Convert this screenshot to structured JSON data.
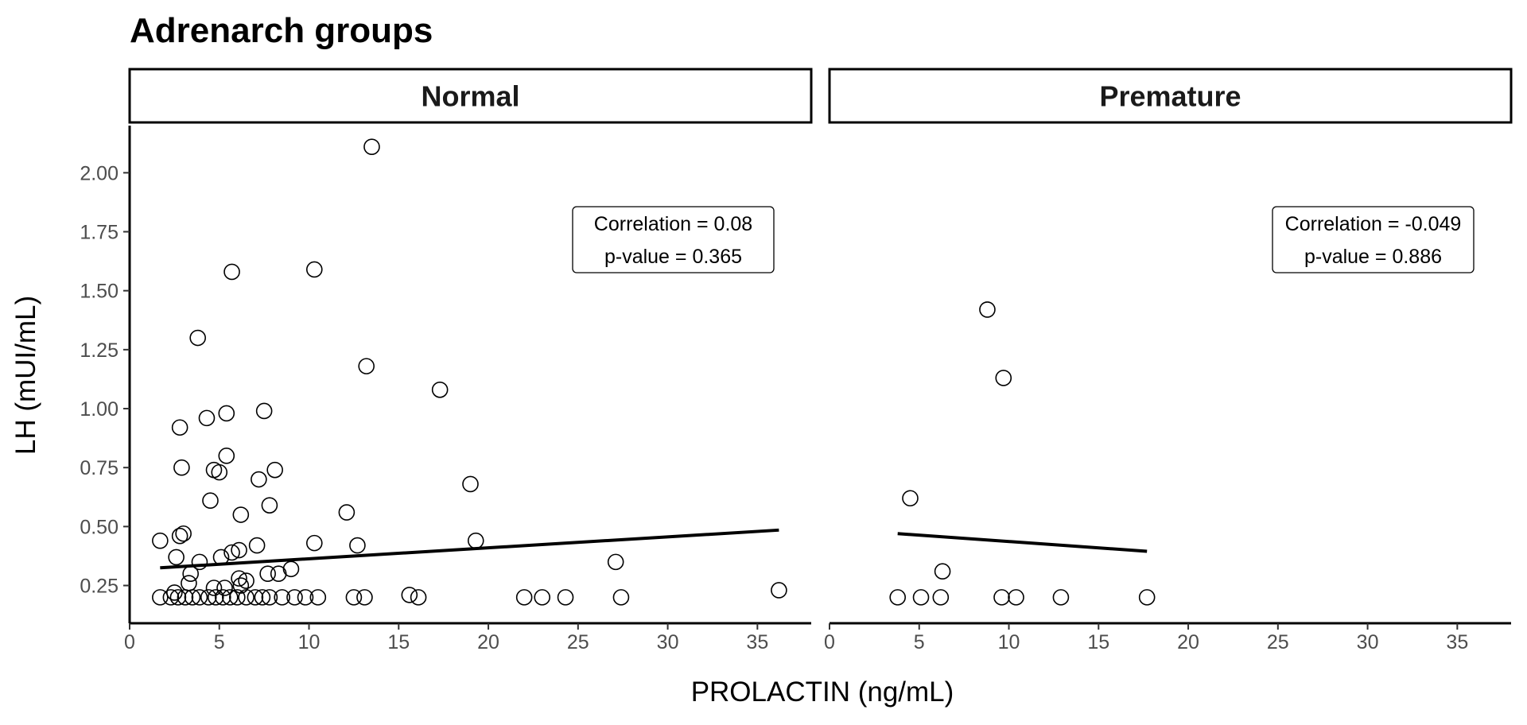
{
  "chart_data": {
    "type": "scatter",
    "title": "Adrenarch groups",
    "xlabel": "PROLACTIN (ng/mL)",
    "ylabel": "LH (mUI/mL)",
    "xlim": [
      0,
      38
    ],
    "ylim": [
      0.09,
      2.2
    ],
    "xticks": [
      0,
      5,
      10,
      15,
      20,
      25,
      30,
      35
    ],
    "xtick_labels": [
      "0",
      "5",
      "10",
      "15",
      "20",
      "25",
      "30",
      "35"
    ],
    "yticks": [
      0.25,
      0.5,
      0.75,
      1.0,
      1.25,
      1.5,
      1.75,
      2.0
    ],
    "ytick_labels": [
      "0.25",
      "0.50",
      "0.75",
      "1.00",
      "1.25",
      "1.50",
      "1.75",
      "2.00"
    ],
    "grid": false,
    "panels": [
      {
        "name": "Normal",
        "correlation_label": "Correlation = 0.08",
        "pvalue_label": "p-value = 0.365",
        "trend": {
          "x": [
            1.7,
            36.2
          ],
          "y": [
            0.325,
            0.485
          ]
        },
        "points": [
          [
            13.5,
            2.11
          ],
          [
            5.7,
            1.58
          ],
          [
            10.3,
            1.59
          ],
          [
            3.8,
            1.3
          ],
          [
            13.2,
            1.18
          ],
          [
            17.3,
            1.08
          ],
          [
            5.4,
            0.98
          ],
          [
            7.5,
            0.99
          ],
          [
            4.3,
            0.96
          ],
          [
            2.8,
            0.92
          ],
          [
            5.4,
            0.8
          ],
          [
            2.9,
            0.75
          ],
          [
            4.7,
            0.74
          ],
          [
            5.0,
            0.73
          ],
          [
            8.1,
            0.74
          ],
          [
            7.2,
            0.7
          ],
          [
            19.0,
            0.68
          ],
          [
            4.5,
            0.61
          ],
          [
            7.8,
            0.59
          ],
          [
            12.1,
            0.56
          ],
          [
            6.2,
            0.55
          ],
          [
            1.7,
            0.44
          ],
          [
            3.0,
            0.47
          ],
          [
            2.8,
            0.46
          ],
          [
            10.3,
            0.43
          ],
          [
            19.3,
            0.44
          ],
          [
            7.1,
            0.42
          ],
          [
            12.7,
            0.42
          ],
          [
            6.1,
            0.4
          ],
          [
            5.7,
            0.39
          ],
          [
            2.6,
            0.37
          ],
          [
            5.1,
            0.37
          ],
          [
            3.9,
            0.35
          ],
          [
            27.1,
            0.35
          ],
          [
            9.0,
            0.32
          ],
          [
            3.4,
            0.3
          ],
          [
            7.7,
            0.3
          ],
          [
            8.3,
            0.3
          ],
          [
            6.1,
            0.28
          ],
          [
            6.5,
            0.27
          ],
          [
            3.3,
            0.26
          ],
          [
            6.2,
            0.25
          ],
          [
            4.7,
            0.24
          ],
          [
            5.3,
            0.24
          ],
          [
            2.5,
            0.22
          ],
          [
            36.2,
            0.23
          ],
          [
            15.6,
            0.21
          ],
          [
            1.7,
            0.2
          ],
          [
            2.3,
            0.2
          ],
          [
            2.7,
            0.2
          ],
          [
            3.1,
            0.2
          ],
          [
            3.5,
            0.2
          ],
          [
            3.9,
            0.2
          ],
          [
            4.4,
            0.2
          ],
          [
            4.8,
            0.2
          ],
          [
            5.2,
            0.2
          ],
          [
            5.6,
            0.2
          ],
          [
            6.0,
            0.2
          ],
          [
            6.5,
            0.2
          ],
          [
            7.0,
            0.2
          ],
          [
            7.4,
            0.2
          ],
          [
            7.8,
            0.2
          ],
          [
            8.5,
            0.2
          ],
          [
            9.2,
            0.2
          ],
          [
            9.8,
            0.2
          ],
          [
            10.5,
            0.2
          ],
          [
            12.5,
            0.2
          ],
          [
            13.1,
            0.2
          ],
          [
            16.1,
            0.2
          ],
          [
            22.0,
            0.2
          ],
          [
            23.0,
            0.2
          ],
          [
            24.3,
            0.2
          ],
          [
            27.4,
            0.2
          ]
        ]
      },
      {
        "name": "Premature",
        "correlation_label": "Correlation = -0.049",
        "pvalue_label": "p-value = 0.886",
        "trend": {
          "x": [
            3.8,
            17.7
          ],
          "y": [
            0.47,
            0.395
          ]
        },
        "points": [
          [
            8.8,
            1.42
          ],
          [
            9.7,
            1.13
          ],
          [
            4.5,
            0.62
          ],
          [
            6.3,
            0.31
          ],
          [
            3.8,
            0.2
          ],
          [
            5.1,
            0.2
          ],
          [
            6.2,
            0.2
          ],
          [
            9.6,
            0.2
          ],
          [
            10.4,
            0.2
          ],
          [
            12.9,
            0.2
          ],
          [
            17.7,
            0.2
          ]
        ]
      }
    ]
  }
}
